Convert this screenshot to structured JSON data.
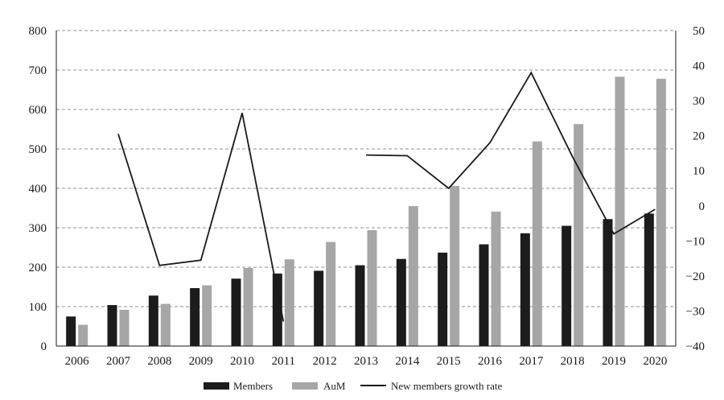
{
  "chart_data": {
    "type": "bar",
    "categories": [
      "2006",
      "2007",
      "2008",
      "2009",
      "2010",
      "2011",
      "2012",
      "2013",
      "2014",
      "2015",
      "2016",
      "2017",
      "2018",
      "2019",
      "2020"
    ],
    "series": [
      {
        "name": "Members",
        "type": "bar",
        "axis": "left",
        "color": "#1c1c1c",
        "values": [
          75,
          104,
          128,
          147,
          171,
          184,
          191,
          205,
          221,
          237,
          258,
          286,
          305,
          322,
          336
        ]
      },
      {
        "name": "AuM",
        "type": "bar",
        "axis": "left",
        "color": "#a6a6a6",
        "values": [
          54,
          92,
          107,
          154,
          198,
          220,
          264,
          294,
          355,
          406,
          341,
          519,
          563,
          683,
          678
        ]
      },
      {
        "name": "New members growth rate",
        "type": "line",
        "axis": "right",
        "color": "#1a1a1a",
        "values": [
          null,
          20.5,
          -17,
          -15.5,
          26.5,
          -33,
          null,
          14.5,
          14.3,
          5,
          18,
          38,
          14,
          -8,
          -1
        ]
      }
    ],
    "ylim_left": [
      0,
      800
    ],
    "yticks_left": [
      0,
      100,
      200,
      300,
      400,
      500,
      600,
      700,
      800
    ],
    "ylim_right": [
      -40,
      50
    ],
    "yticks_right": [
      -40,
      -30,
      -20,
      -10,
      0,
      10,
      20,
      30,
      40,
      50
    ],
    "grid": "horizontal dashed",
    "legend_position": "bottom"
  }
}
